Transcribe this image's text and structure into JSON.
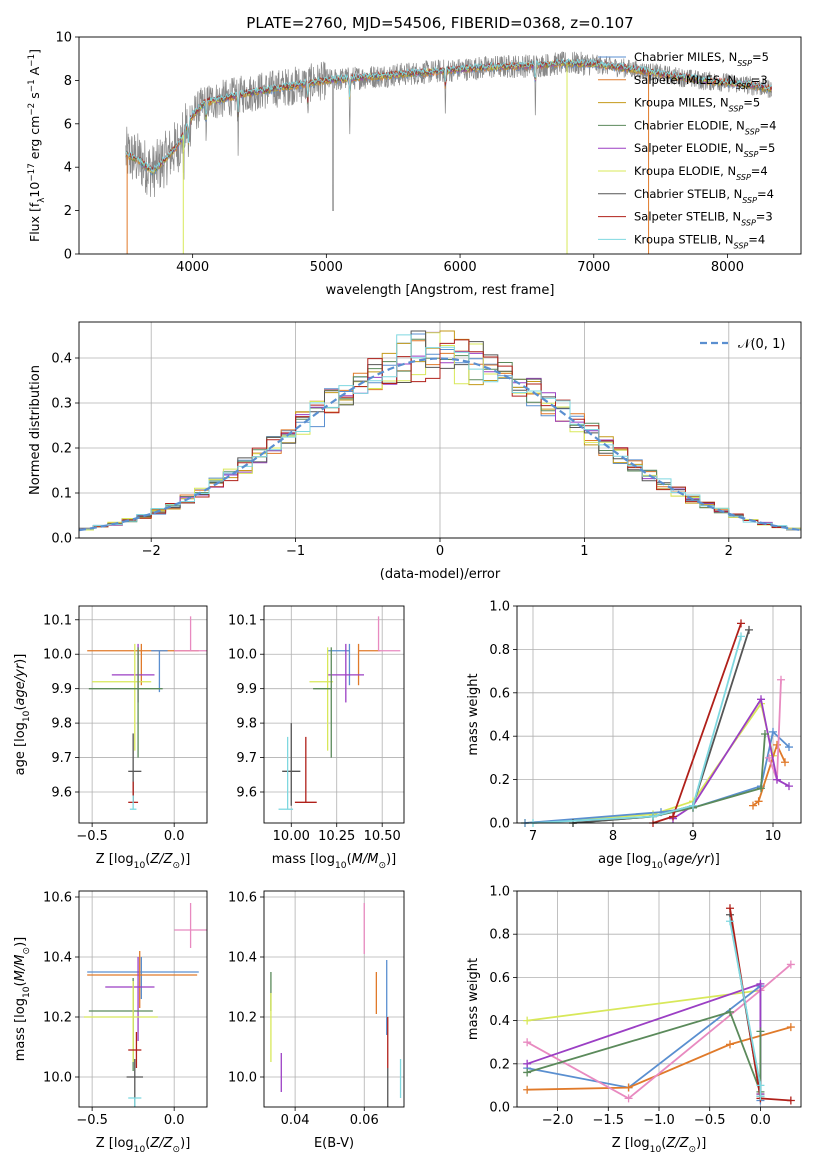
{
  "figure_title": "PLATE=2760, MJD=54506, FIBERID=0368, z=0.107",
  "legend_models": [
    {
      "label": "Chabrier MILES, N",
      "sub": "SSP",
      "suffix": "=5",
      "color": "#5a8fd0"
    },
    {
      "label": "Salpeter MILES, N",
      "sub": "SSP",
      "suffix": "=3",
      "color": "#e07a2a"
    },
    {
      "label": "Kroupa MILES, N",
      "sub": "SSP",
      "suffix": "=5",
      "color": "#c49a1a"
    },
    {
      "label": "Chabrier ELODIE, N",
      "sub": "SSP",
      "suffix": "=4",
      "color": "#5b8a5b"
    },
    {
      "label": "Salpeter ELODIE, N",
      "sub": "SSP",
      "suffix": "=5",
      "color": "#9b3fc4"
    },
    {
      "label": "Kroupa ELODIE, N",
      "sub": "SSP",
      "suffix": "=4",
      "color": "#d8e85a"
    },
    {
      "label": "Chabrier STELIB, N",
      "sub": "SSP",
      "suffix": "=4",
      "color": "#555555"
    },
    {
      "label": "Salpeter STELIB, N",
      "sub": "SSP",
      "suffix": "=3",
      "color": "#b0201a"
    },
    {
      "label": "Kroupa STELIB, N",
      "sub": "SSP",
      "suffix": "=4",
      "color": "#7fd8e0"
    }
  ],
  "chart_data": [
    {
      "id": "spectrum",
      "type": "line",
      "title": "",
      "xlabel": "wavelength [Angstrom, rest frame]",
      "ylabel": "Flux [fλ10⁻¹⁷ erg cm⁻² s⁻¹ A⁻¹]",
      "xlim": [
        3150,
        8550
      ],
      "ylim": [
        0,
        10
      ],
      "xticks": [
        4000,
        5000,
        6000,
        7000,
        8000
      ],
      "yticks": [
        0,
        2,
        4,
        6,
        8,
        10
      ],
      "data_color": "#888888",
      "model_color": "#7fd8e0",
      "continuum": {
        "x": [
          3500,
          3600,
          3700,
          3800,
          3900,
          4000,
          4100,
          4200,
          4400,
          4600,
          4800,
          5000,
          5200,
          5400,
          5600,
          5800,
          6000,
          6200,
          6400,
          6600,
          6800,
          7000,
          7200,
          7400,
          7600,
          7800,
          8000,
          8200,
          8330
        ],
        "y": [
          4.6,
          4.3,
          3.8,
          4.4,
          5.1,
          6.4,
          7.0,
          7.1,
          7.4,
          7.6,
          7.8,
          8.0,
          8.1,
          8.2,
          8.3,
          8.4,
          8.5,
          8.6,
          8.65,
          8.7,
          8.8,
          8.75,
          8.6,
          8.4,
          8.2,
          8.0,
          7.9,
          7.75,
          7.6
        ]
      }
    },
    {
      "id": "residuals",
      "type": "line",
      "title": "",
      "xlabel": "(data-model)/error",
      "ylabel": "Normed distribution",
      "xlim": [
        -2.5,
        2.5
      ],
      "ylim": [
        0,
        0.48
      ],
      "xticks": [
        -2,
        -1,
        0,
        1,
        2
      ],
      "yticks": [
        0.0,
        0.1,
        0.2,
        0.3,
        0.4
      ],
      "gaussian": {
        "name": "N(0,1)",
        "mean": 0,
        "sigma": 1,
        "color": "#5a8fd0"
      }
    },
    {
      "id": "age_vs_Z",
      "type": "scatter",
      "xlabel": "Z [log10(Z/Z⊙)]",
      "ylabel": "age  [log10(age/yr)]",
      "xlim": [
        -0.58,
        0.2
      ],
      "ylim": [
        9.51,
        10.14
      ],
      "xticks": [
        -0.5,
        0.0
      ],
      "yticks": [
        9.6,
        9.7,
        9.8,
        9.9,
        10.0,
        10.1
      ],
      "points": [
        {
          "x": -0.2,
          "y": 10.01,
          "xerr": [
            0.33,
            0.35
          ],
          "yerr": [
            0.1,
            0.02
          ],
          "color": "#e07a2a"
        },
        {
          "x": 0.1,
          "y": 10.01,
          "xerr": [
            0.1,
            0.1
          ],
          "yerr": [
            0.0,
            0.1
          ],
          "color": "#e88ac0"
        },
        {
          "x": -0.09,
          "y": 10.01,
          "xerr": [
            0.05,
            0.05
          ],
          "yerr": [
            0.12,
            0.0
          ],
          "color": "#5a8fd0"
        },
        {
          "x": -0.22,
          "y": 9.94,
          "xerr": [
            0.16,
            0.1
          ],
          "yerr": [
            0.08,
            0.09
          ],
          "color": "#9b3fc4"
        },
        {
          "x": -0.24,
          "y": 9.92,
          "xerr": [
            0.26,
            0.1
          ],
          "yerr": [
            0.2,
            0.11
          ],
          "color": "#d8e85a"
        },
        {
          "x": -0.22,
          "y": 9.9,
          "xerr": [
            0.3,
            0.15
          ],
          "yerr": [
            0.2,
            0.12
          ],
          "color": "#5b8a5b"
        },
        {
          "x": -0.25,
          "y": 9.66,
          "xerr": [
            0.03,
            0.05
          ],
          "yerr": [
            0.09,
            0.11
          ],
          "color": "#555555"
        },
        {
          "x": -0.25,
          "y": 9.57,
          "xerr": [
            0.03,
            0.03
          ],
          "yerr": [
            0.0,
            0.06
          ],
          "color": "#b0201a"
        },
        {
          "x": -0.25,
          "y": 9.55,
          "xerr": [
            0.02,
            0.02
          ],
          "yerr": [
            0.0,
            0.04
          ],
          "color": "#7fd8e0"
        }
      ]
    },
    {
      "id": "age_vs_mass",
      "type": "scatter",
      "xlabel": "mass [log10(M/M⊙)]",
      "ylabel": "",
      "xlim": [
        9.85,
        10.62
      ],
      "ylim": [
        9.51,
        10.14
      ],
      "xticks": [
        10.0,
        10.25,
        10.5
      ],
      "yticks": [
        9.6,
        9.7,
        9.8,
        9.9,
        10.0,
        10.1
      ],
      "points": [
        {
          "x": 10.32,
          "y": 10.01,
          "xerr": [
            0.12,
            0.0
          ],
          "yerr": [
            0.1,
            0.02
          ],
          "color": "#5a8fd0"
        },
        {
          "x": 10.37,
          "y": 10.01,
          "xerr": [
            0.0,
            0.12
          ],
          "yerr": [
            0.1,
            0.02
          ],
          "color": "#e07a2a"
        },
        {
          "x": 10.48,
          "y": 10.01,
          "xerr": [
            0.0,
            0.12
          ],
          "yerr": [
            0.0,
            0.1
          ],
          "color": "#e88ac0"
        },
        {
          "x": 10.3,
          "y": 9.94,
          "xerr": [
            0.1,
            0.1
          ],
          "yerr": [
            0.08,
            0.09
          ],
          "color": "#9b3fc4"
        },
        {
          "x": 10.2,
          "y": 9.92,
          "xerr": [
            0.1,
            0.03
          ],
          "yerr": [
            0.2,
            0.1
          ],
          "color": "#d8e85a"
        },
        {
          "x": 10.22,
          "y": 9.9,
          "xerr": [
            0.1,
            0.0
          ],
          "yerr": [
            0.2,
            0.12
          ],
          "color": "#5b8a5b"
        },
        {
          "x": 10.0,
          "y": 9.66,
          "xerr": [
            0.05,
            0.05
          ],
          "yerr": [
            0.1,
            0.14
          ],
          "color": "#555555"
        },
        {
          "x": 10.08,
          "y": 9.57,
          "xerr": [
            0.06,
            0.06
          ],
          "yerr": [
            0.0,
            0.19
          ],
          "color": "#b0201a"
        },
        {
          "x": 9.98,
          "y": 9.55,
          "xerr": [
            0.05,
            0.03
          ],
          "yerr": [
            0.0,
            0.21
          ],
          "color": "#7fd8e0"
        }
      ]
    },
    {
      "id": "weight_vs_age",
      "type": "line",
      "xlabel": "age  [log10(age/yr)]",
      "ylabel": "mass weight",
      "xlim": [
        6.8,
        10.35
      ],
      "ylim": [
        0,
        1
      ],
      "xticks": [
        7,
        8,
        9,
        10
      ],
      "yticks": [
        0.0,
        0.2,
        0.4,
        0.6,
        0.8,
        1.0
      ],
      "series": [
        {
          "color": "#d8e85a",
          "x": [
            6.9,
            8.5,
            9.0,
            9.85,
            10.0
          ],
          "y": [
            0.0,
            0.04,
            0.1,
            0.55,
            0.31
          ]
        },
        {
          "color": "#5a8fd0",
          "x": [
            6.9,
            8.6,
            9.0,
            9.85,
            10.0,
            10.2
          ],
          "y": [
            0.0,
            0.05,
            0.07,
            0.17,
            0.42,
            0.35
          ]
        },
        {
          "color": "#e07a2a",
          "x": [
            9.75,
            9.82,
            10.05,
            10.15
          ],
          "y": [
            0.08,
            0.1,
            0.36,
            0.28
          ]
        },
        {
          "color": "#e88ac0",
          "x": [
            9.95,
            10.05,
            10.1
          ],
          "y": [
            0.3,
            0.2,
            0.66
          ]
        },
        {
          "color": "#9b3fc4",
          "x": [
            8.75,
            9.0,
            9.85,
            10.05,
            10.2
          ],
          "y": [
            0.02,
            0.08,
            0.57,
            0.2,
            0.17
          ]
        },
        {
          "color": "#5b8a5b",
          "x": [
            7.5,
            8.5,
            9.0,
            9.85,
            9.9
          ],
          "y": [
            0.0,
            0.03,
            0.07,
            0.16,
            0.41
          ]
        },
        {
          "color": "#555555",
          "x": [
            7.5,
            8.5,
            9.0,
            9.7
          ],
          "y": [
            0.0,
            0.03,
            0.08,
            0.89
          ]
        },
        {
          "color": "#b0201a",
          "x": [
            8.5,
            8.75,
            9.6
          ],
          "y": [
            0.0,
            0.03,
            0.92
          ]
        },
        {
          "color": "#7fd8e0",
          "x": [
            7.0,
            8.5,
            9.0,
            9.6
          ],
          "y": [
            0.0,
            0.03,
            0.08,
            0.86
          ]
        }
      ]
    },
    {
      "id": "mass_vs_Z",
      "type": "scatter",
      "xlabel": "Z [log10(Z/Z⊙)]",
      "ylabel": "mass [log10(M/M⊙)]",
      "xlim": [
        -0.58,
        0.2
      ],
      "ylim": [
        9.9,
        10.62
      ],
      "xticks": [
        -0.5,
        0.0
      ],
      "yticks": [
        10.0,
        10.2,
        10.4,
        10.6
      ],
      "points": [
        {
          "x": 0.1,
          "y": 10.49,
          "xerr": [
            0.1,
            0.1
          ],
          "yerr": [
            0.06,
            0.09
          ],
          "color": "#e88ac0"
        },
        {
          "x": -0.2,
          "y": 10.35,
          "xerr": [
            0.33,
            0.35
          ],
          "yerr": [
            0.09,
            0.05
          ],
          "color": "#5a8fd0"
        },
        {
          "x": -0.21,
          "y": 10.34,
          "xerr": [
            0.32,
            0.35
          ],
          "yerr": [
            0.11,
            0.08
          ],
          "color": "#e07a2a"
        },
        {
          "x": -0.22,
          "y": 10.3,
          "xerr": [
            0.2,
            0.1
          ],
          "yerr": [
            0.18,
            0.1
          ],
          "color": "#9b3fc4"
        },
        {
          "x": -0.25,
          "y": 10.22,
          "xerr": [
            0.27,
            0.12
          ],
          "yerr": [
            0.2,
            0.11
          ],
          "color": "#5b8a5b"
        },
        {
          "x": -0.25,
          "y": 10.2,
          "xerr": [
            0.3,
            0.15
          ],
          "yerr": [
            0.15,
            0.12
          ],
          "color": "#d8e85a"
        },
        {
          "x": -0.23,
          "y": 10.09,
          "xerr": [
            0.05,
            0.03
          ],
          "yerr": [
            0.06,
            0.06
          ],
          "color": "#b0201a"
        },
        {
          "x": -0.24,
          "y": 10.0,
          "xerr": [
            0.05,
            0.05
          ],
          "yerr": [
            0.1,
            0.06
          ],
          "color": "#555555"
        },
        {
          "x": -0.24,
          "y": 9.93,
          "xerr": [
            0.04,
            0.04
          ],
          "yerr": [
            0.03,
            0.0
          ],
          "color": "#7fd8e0"
        }
      ]
    },
    {
      "id": "mass_vs_EBV",
      "type": "scatter",
      "xlabel": "E(B-V)",
      "ylabel": "",
      "xlim": [
        0.031,
        0.0715
      ],
      "ylim": [
        9.9,
        10.62
      ],
      "xticks": [
        0.04,
        0.06
      ],
      "yticks": [
        10.0,
        10.2,
        10.4,
        10.6
      ],
      "points": [
        {
          "x": 0.033,
          "y": 10.29,
          "xerr": [
            0,
            0
          ],
          "yerr": [
            0.07,
            0.06
          ],
          "color": "#5b8a5b"
        },
        {
          "x": 0.033,
          "y": 10.18,
          "xerr": [
            0,
            0
          ],
          "yerr": [
            0.13,
            0.1
          ],
          "color": "#d8e85a"
        },
        {
          "x": 0.036,
          "y": 10.0,
          "xerr": [
            0,
            0
          ],
          "yerr": [
            0.05,
            0.08
          ],
          "color": "#9b3fc4"
        },
        {
          "x": 0.06,
          "y": 10.49,
          "xerr": [
            0,
            0
          ],
          "yerr": [
            0.08,
            0.09
          ],
          "color": "#e88ac0"
        },
        {
          "x": 0.0635,
          "y": 10.3,
          "xerr": [
            0,
            0
          ],
          "yerr": [
            0.09,
            0.05
          ],
          "color": "#e07a2a"
        },
        {
          "x": 0.0665,
          "y": 10.27,
          "xerr": [
            0,
            0
          ],
          "yerr": [
            0.13,
            0.12
          ],
          "color": "#5a8fd0"
        },
        {
          "x": 0.0668,
          "y": 10.1,
          "xerr": [
            0,
            0
          ],
          "yerr": [
            0.07,
            0.1
          ],
          "color": "#b0201a"
        },
        {
          "x": 0.0668,
          "y": 9.98,
          "xerr": [
            0,
            0
          ],
          "yerr": [
            0.08,
            0.05
          ],
          "color": "#555555"
        },
        {
          "x": 0.0705,
          "y": 9.98,
          "xerr": [
            0,
            0
          ],
          "yerr": [
            0.05,
            0.08
          ],
          "color": "#7fd8e0"
        }
      ]
    },
    {
      "id": "weight_vs_Z",
      "type": "line",
      "xlabel": "Z [log10(Z/Z⊙)]",
      "ylabel": "mass weight",
      "xlim": [
        -2.4,
        0.4
      ],
      "ylim": [
        0,
        1
      ],
      "xticks": [
        -2.0,
        -1.5,
        -1.0,
        -0.5,
        0.0
      ],
      "yticks": [
        0.0,
        0.2,
        0.4,
        0.6,
        0.8,
        1.0
      ],
      "series": [
        {
          "color": "#d8e85a",
          "x": [
            -2.3,
            0.0,
            0.0
          ],
          "y": [
            0.4,
            0.54,
            0.06
          ]
        },
        {
          "color": "#5a8fd0",
          "x": [
            -2.3,
            -1.3,
            0.0,
            0.0
          ],
          "y": [
            0.18,
            0.09,
            0.56,
            0.03
          ]
        },
        {
          "color": "#e07a2a",
          "x": [
            -2.3,
            -1.3,
            -0.3,
            0.3
          ],
          "y": [
            0.08,
            0.09,
            0.29,
            0.37
          ]
        },
        {
          "color": "#e88ac0",
          "x": [
            -2.3,
            -1.3,
            0.0,
            0.3
          ],
          "y": [
            0.3,
            0.04,
            0.54,
            0.66
          ]
        },
        {
          "color": "#9b3fc4",
          "x": [
            -2.3,
            0.0,
            0.0
          ],
          "y": [
            0.2,
            0.57,
            0.06
          ]
        },
        {
          "color": "#5b8a5b",
          "x": [
            -2.3,
            -0.3,
            0.0,
            0.0
          ],
          "y": [
            0.16,
            0.44,
            0.07,
            0.35
          ]
        },
        {
          "color": "#555555",
          "x": [
            -0.3,
            0.0
          ],
          "y": [
            0.89,
            0.05
          ]
        },
        {
          "color": "#b0201a",
          "x": [
            -0.3,
            0.0,
            0.3
          ],
          "y": [
            0.92,
            0.04,
            0.03
          ]
        },
        {
          "color": "#7fd8e0",
          "x": [
            -0.3,
            0.0,
            0.0
          ],
          "y": [
            0.86,
            0.1,
            0.05
          ]
        }
      ]
    }
  ]
}
